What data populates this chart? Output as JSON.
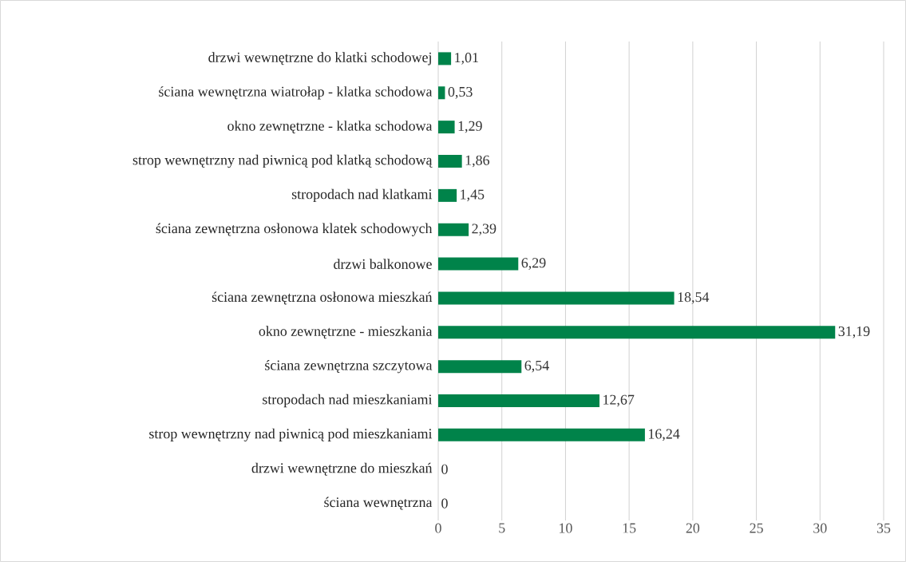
{
  "chart_data": {
    "type": "bar",
    "orientation": "horizontal",
    "categories": [
      "drzwi wewnętrzne do klatki schodowej",
      "ściana wewnętrzna wiatrołap - klatka schodowa",
      "okno zewnętrzne - klatka schodowa",
      "strop wewnętrzny nad piwnicą pod klatką schodową",
      "stropodach nad klatkami",
      "ściana zewnętrzna osłonowa klatek schodowych",
      "drzwi balkonowe",
      "ściana zewnętrzna osłonowa mieszkań",
      "okno zewnętrzne - mieszkania",
      "ściana zewnętrzna szczytowa",
      "stropodach nad mieszkaniami",
      "strop wewnętrzny nad piwnicą pod mieszkaniami",
      "drzwi wewnętrzne do mieszkań",
      "ściana wewnętrzna"
    ],
    "values": [
      1.01,
      0.53,
      1.29,
      1.86,
      1.45,
      2.39,
      6.29,
      18.54,
      31.19,
      6.54,
      12.67,
      16.24,
      0,
      0
    ],
    "value_labels": [
      "1,01",
      "0,53",
      "1,29",
      "1,86",
      "1,45",
      "2,39",
      "6,29",
      "18,54",
      "31,19",
      "6,54",
      "12,67",
      "16,24",
      "0",
      "0"
    ],
    "color": "#00834a",
    "xlim": [
      0,
      35
    ],
    "xticks": [
      0,
      5,
      10,
      15,
      20,
      25,
      30,
      35
    ],
    "grid": "x"
  }
}
